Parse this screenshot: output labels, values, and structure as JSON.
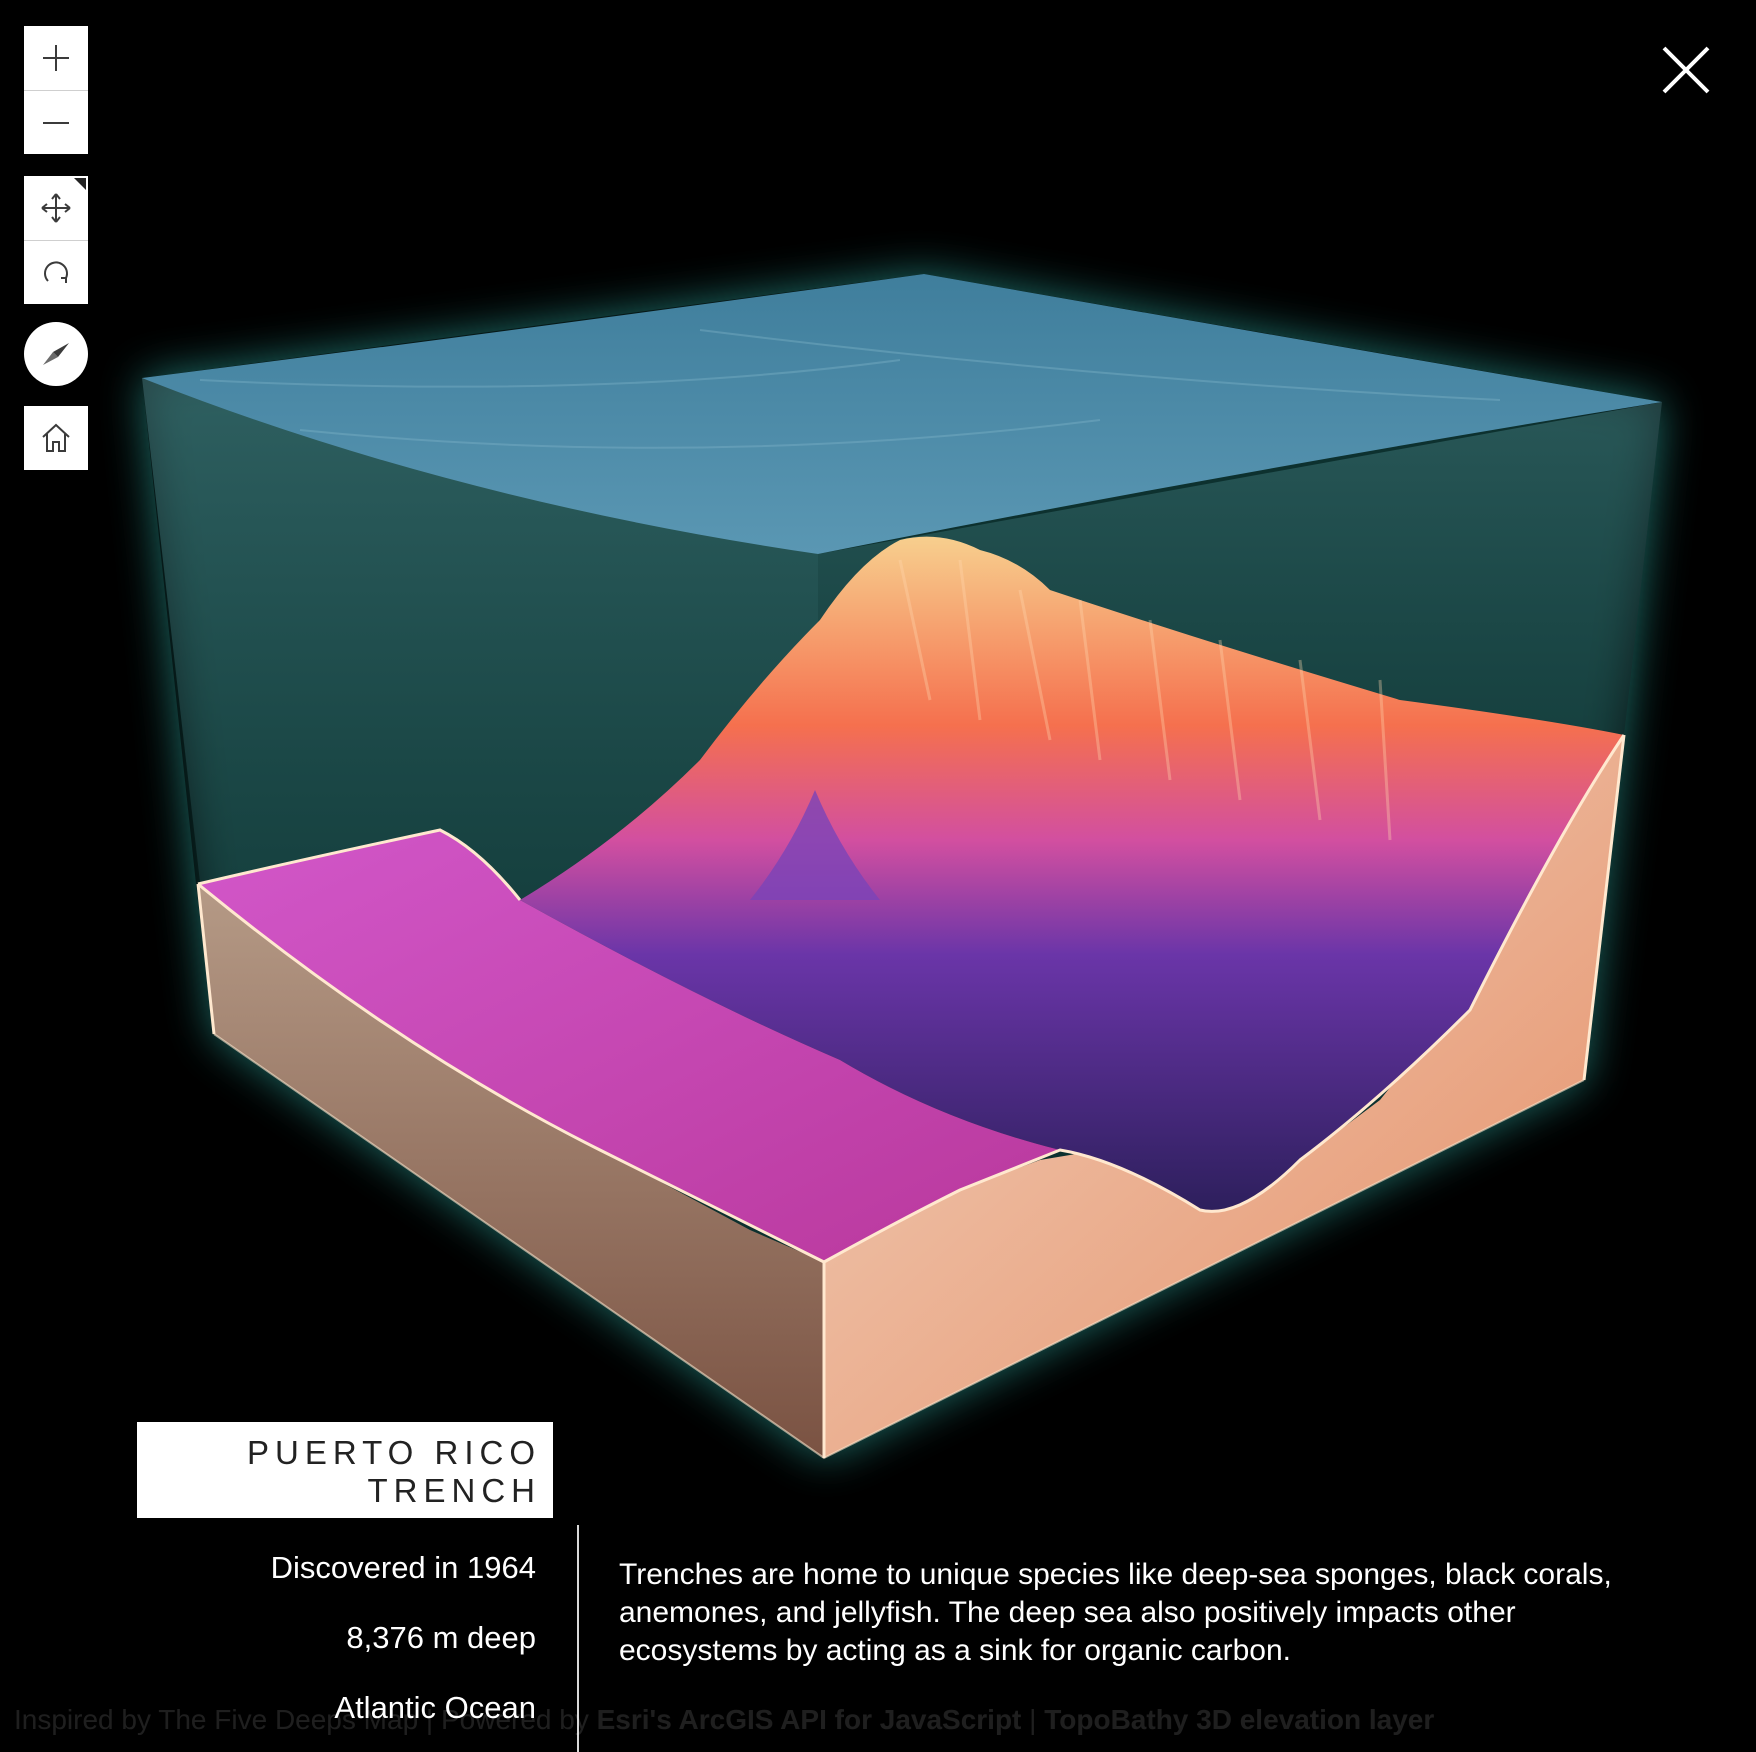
{
  "scene": {
    "colors": {
      "water": "#4a86a3",
      "terrain_high": "#f6c78a",
      "terrain_mid": "#e0508a",
      "terrain_low": "#5b2a8c",
      "plain": "#c24fc0",
      "box_side_left": "#8d6b57",
      "box_side_right": "#e8a27c",
      "glow": "#3fe0d0"
    }
  },
  "toolbar": {
    "zoom_in_icon": "plus-icon",
    "zoom_out_icon": "minus-icon",
    "pan_icon": "move-arrows-icon",
    "rotate_icon": "rotate-icon",
    "compass_icon": "compass-needle-icon",
    "home_icon": "home-icon",
    "close_icon": "close-x-icon"
  },
  "location": {
    "title_line1": "PUERTO RICO",
    "title_line2": "TRENCH",
    "discovered": "Discovered in 1964",
    "depth": "8,376 m deep",
    "ocean": "Atlantic Ocean"
  },
  "description": "Trenches are home to unique species like deep-sea sponges, black corals, anemones, and jellyfish. The deep sea also positively impacts other ecosystems by acting as a sink for organic carbon.",
  "attribution": {
    "inspired": "Inspired by The Five Deeps ",
    "map_label": "Map",
    "powered": " | Powered by ",
    "api": "Esri's ArcGIS API for JavaScript",
    "sep": " | ",
    "layer": "TopoBathy 3D elevation layer"
  }
}
